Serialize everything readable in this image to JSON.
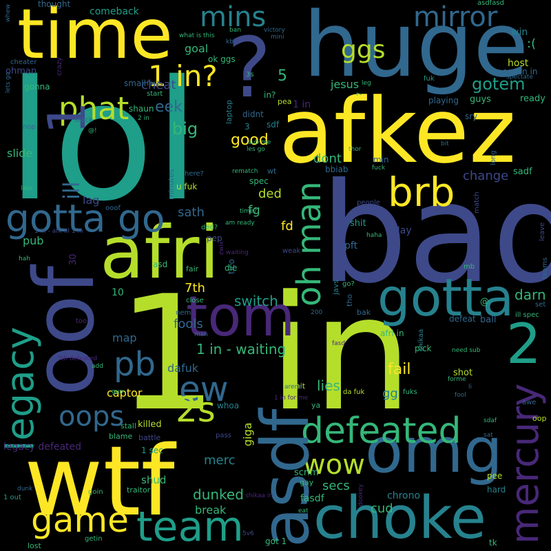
{
  "background_color": "#000000",
  "palette": {
    "yellow": "#fde725",
    "lime": "#b5de2b",
    "green": "#6ece58",
    "teal_green": "#35b779",
    "teal": "#1f9e89",
    "cyan": "#26828e",
    "blue": "#31688e",
    "indigo": "#3e4989",
    "purple": "#482878",
    "dark": "#440154"
  },
  "words": {
    "lol": "lol",
    "one_in": "1 in",
    "bad": "bad",
    "huge": "huge",
    "afkez": "afkez",
    "time": "time",
    "wtf": "wtf",
    "oof": "oof",
    "afri": "afri",
    "asdf": "asdf",
    "choke": "choke",
    "omg": "omg",
    "tom": "tom",
    "gotta": "gotta",
    "gotta_go": "gotta go",
    "defeated": "defeated",
    "team": "team",
    "legacy": "legacy",
    "mercury": "mercury",
    "brb": "brb",
    "qmark": "?",
    "one_in_q": "1 in?",
    "two": "2",
    "one": "1",
    "mirror": "mirror",
    "ggs": "ggs",
    "mins": "mins",
    "phat": "phat",
    "oh_man": "oh man",
    "ew": "ew",
    "two_s": "2s",
    "oops": "oops",
    "pb": "pb",
    "game": "game",
    "wow": "wow",
    "ill": "ill",
    "eek": "eek",
    "big": "big",
    "good": "good",
    "gotem": "gotem",
    "jesus": "jesus",
    "cheat": "cheat",
    "goal": "goal",
    "five": "5",
    "dont": "dont",
    "change": "change",
    "ded": "ded",
    "fd": "fd",
    "sath": "sath",
    "fg": "fg",
    "lag": "lag",
    "pub": "pub",
    "slide": "slide",
    "switch": "switch",
    "seven_th": "7th",
    "fools": "fools",
    "map": "map",
    "one_in_waiting": "1 in - waiting",
    "dafuk": "dafuk",
    "captor": "captor",
    "lies": "lies",
    "fail": "fail",
    "gg": "gg",
    "darn": "darn",
    "merc": "merc",
    "dunked": "dunked",
    "break": "break",
    "secs": "secs",
    "cud": "cud",
    "fasdf": "fasdf",
    "chrono": "chrono",
    "scrim": "scrim",
    "shud": "shud",
    "legacy_defeated": "legacy defeated",
    "one_sec": "1 sec",
    "killed": "killed",
    "giga": "giga",
    "whoa": "whoa",
    "comeback": "comeback",
    "thought": "thought",
    "win": "win",
    "sad_face": ":(",
    "host": "host",
    "seven_in": "seven in",
    "spectate": "spectate",
    "ready": "ready",
    "guys": "guys",
    "sry": "sry",
    "playing": "playing",
    "fuk": "fuk",
    "ohman": "ohman",
    "gonna": "gonna",
    "small": "small",
    "ok_ggs": "ok ggs",
    "in_q": "in?",
    "pea": "pea",
    "shaun": "shaun",
    "stack": "stack",
    "sdf": "sdf",
    "didnt": "didnt",
    "three": "3",
    "nop": "nop",
    "bbiab": "bbiab",
    "min": "min",
    "spec": "spec",
    "wt": "wt",
    "rematch": "rematch",
    "u_fuk": "u fuk",
    "minutes": "minutes",
    "here_q": "here?",
    "shit": "shit",
    "people": "people",
    "sadf": "sadf",
    "pft": "pft",
    "play": "play",
    "pep": "pep",
    "die": "die",
    "tico": "tico",
    "ten": "10",
    "asd": "asd",
    "fair": "fair",
    "close": "close",
    "nem": "nem",
    "tho": "tho",
    "bak": "bak",
    "javs": "javs",
    "afri_in": "afri in",
    "at": "@",
    "ball": "ball",
    "defeat": "defeat",
    "ill_spec": "ill spec",
    "set": "set",
    "teams": "teams",
    "leave": "leave",
    "mb": "mb",
    "pick": "pick",
    "shot": "shot",
    "need_sub": "need sub",
    "fuks": "fuks",
    "fool": "fool",
    "awe": "awe",
    "sdaf": "sdaf",
    "oop": "oop",
    "sat": "sat",
    "pee": "pee",
    "hard": "hard",
    "da_fuk": "da fuk",
    "wait": "wait",
    "arena": "arena",
    "ya": "ya",
    "one_in_for_me": "1 in for me",
    "shikaa": "shikaa",
    "gay": "gay",
    "eat": "eat",
    "shikaa_in": "shikaa in",
    "dookey": "dookey",
    "got_1": "got 1",
    "tk": "tk",
    "lost": "lost",
    "getin": "getin",
    "five_v6": "5v6",
    "goin": "goin",
    "traitor": "traitor",
    "dunk": "dunk",
    "one_out": "1 out",
    "blame": "blame",
    "battle": "battle",
    "stall": "stall",
    "gun": "gun",
    "add": "add",
    "seven_th_defeated": "7th defeated",
    "tool": "tool",
    "pass": "pass",
    "thirty": "30",
    "ooof": "ooof",
    "one_in_afk": "1 in - afk til 1 in",
    "cheater": "cheater",
    "lets_go": "lets go",
    "crazy": "crazy",
    "whew": "whew",
    "kb": "kb",
    "ban": "ban",
    "what_is_this": "what is this",
    "victory": "victory",
    "mini": "mini",
    "asdfasd": "asdfasd",
    "today": "today",
    "laptop": "laptop",
    "sub_me": "sub me",
    "les_go": "les go",
    "thor": "thor",
    "fuck": "fuck",
    "time_q": "time?",
    "am_ready": "am ready",
    "ded_q": "ded?",
    "weak": "weak",
    "waiting": "waiting",
    "zwix": "zwix",
    "haha": "haha",
    "match": "match",
    "long": "long",
    "bit": "bit",
    "go_q": "go?",
    "two_hundred": "200",
    "man": "man",
    "fasd": "fasd",
    "forme": "forme",
    "li": "li",
    "seven": "7",
    "leg": "leg",
    "start": "start",
    "fast": "fast",
    "two_in": "2 in",
    "one_in_small": "1 in",
    "three_s": "3s",
    "hah": "hah",
    "late": "late",
    "four": "4",
    "at_excl": "@!"
  }
}
